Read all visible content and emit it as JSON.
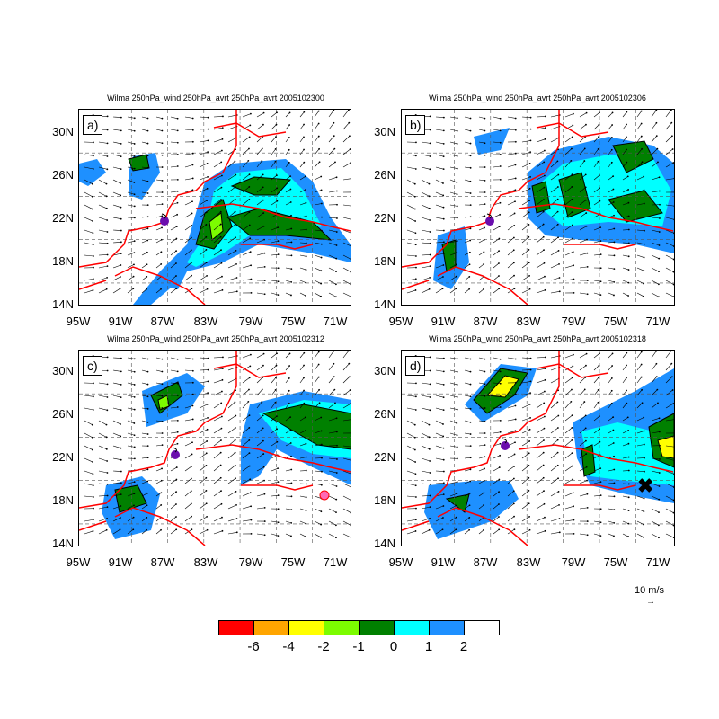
{
  "panels": [
    {
      "id": "a",
      "label": "a)",
      "title": "Wilma 250hPa_wind 250hPa_avrt 250hPa_avrt 2005102300"
    },
    {
      "id": "b",
      "label": "b)",
      "title": "Wilma 250hPa_wind 250hPa_avrt 250hPa_avrt 2005102306"
    },
    {
      "id": "c",
      "label": "c)",
      "title": "Wilma 250hPa_wind 250hPa_avrt 250hPa_avrt 2005102312"
    },
    {
      "id": "d",
      "label": "d)",
      "title": "Wilma 250hPa_wind 250hPa_avrt 250hPa_avrt 2005102318"
    }
  ],
  "lat_labels": [
    "30N",
    "26N",
    "22N",
    "18N",
    "14N"
  ],
  "lon_labels": [
    "95W",
    "91W",
    "87W",
    "83W",
    "79W",
    "75W",
    "71W"
  ],
  "reference_vector": {
    "label": "10 m/s",
    "arrow": "→"
  },
  "colorbar": {
    "colors": [
      "#ff0000",
      "#ffa500",
      "#ffff00",
      "#7cfc00",
      "#008000",
      "#00ffff",
      "#1e90ff",
      "#ffffff"
    ],
    "labels": [
      "-6",
      "-4",
      "-2",
      "-1",
      "0",
      "1",
      "2"
    ]
  },
  "colors": {
    "coastline": "#ff0000",
    "storm": "#6a0dad",
    "vectors": "#000000"
  }
}
